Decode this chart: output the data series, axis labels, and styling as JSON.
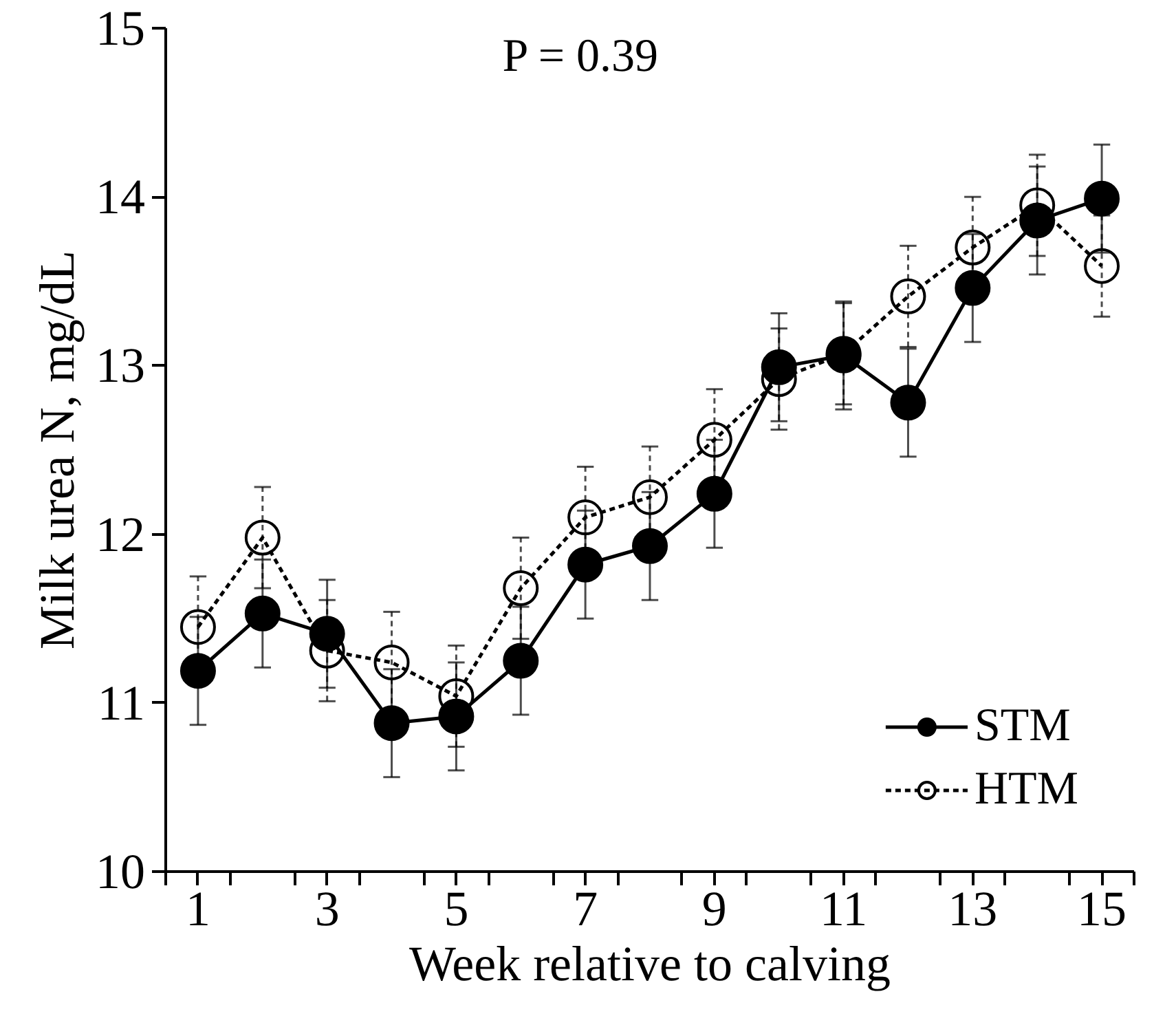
{
  "chart_data": {
    "type": "line",
    "xlabel": "Week relative to calving",
    "ylabel": "Milk urea N, mg/dL",
    "annotations": [
      "P = 0.39"
    ],
    "x": [
      1,
      2,
      3,
      4,
      5,
      6,
      7,
      8,
      9,
      10,
      11,
      12,
      13,
      14,
      15
    ],
    "xlim": [
      0.5,
      15.5
    ],
    "xticks": [
      {
        "value": 0.5,
        "label": null
      },
      1,
      {
        "value": 1.5,
        "label": null
      },
      {
        "value": 2.5,
        "label": null
      },
      3,
      {
        "value": 3.5,
        "label": null
      },
      {
        "value": 4.5,
        "label": null
      },
      5,
      {
        "value": 5.5,
        "label": null
      },
      {
        "value": 6.5,
        "label": null
      },
      7,
      {
        "value": 7.5,
        "label": null
      },
      {
        "value": 8.5,
        "label": null
      },
      9,
      {
        "value": 9.5,
        "label": null
      },
      {
        "value": 10.5,
        "label": null
      },
      11,
      {
        "value": 11.5,
        "label": null
      },
      {
        "value": 12.5,
        "label": null
      },
      13,
      {
        "value": 13.5,
        "label": null
      },
      {
        "value": 14.5,
        "label": null
      },
      15,
      {
        "value": 15.5,
        "label": null
      }
    ],
    "ylim": [
      10,
      15
    ],
    "yticks": [
      10,
      11,
      12,
      13,
      14,
      15
    ],
    "grid": false,
    "legend": "bottom right",
    "marker": "circle",
    "series": [
      {
        "name": "STM",
        "color": "#000000",
        "line_style": "solid",
        "values": [
          11.19,
          11.53,
          11.41,
          10.88,
          10.92,
          11.25,
          11.82,
          11.93,
          12.24,
          12.99,
          13.06,
          12.78,
          13.46,
          13.86,
          13.99
        ],
        "errors": [
          0.32,
          0.32,
          0.32,
          0.32,
          0.32,
          0.32,
          0.32,
          0.32,
          0.32,
          0.32,
          0.32,
          0.32,
          0.32,
          0.32,
          0.32
        ]
      },
      {
        "name": "HTM",
        "color": "#000000",
        "line_style": "dashed",
        "values": [
          11.45,
          11.98,
          11.31,
          11.24,
          11.04,
          11.68,
          12.1,
          12.22,
          12.56,
          12.92,
          13.07,
          13.41,
          13.7,
          13.95,
          13.59
        ],
        "errors": [
          0.3,
          0.3,
          0.3,
          0.3,
          0.3,
          0.3,
          0.3,
          0.3,
          0.3,
          0.3,
          0.3,
          0.3,
          0.3,
          0.3,
          0.3
        ]
      }
    ]
  }
}
